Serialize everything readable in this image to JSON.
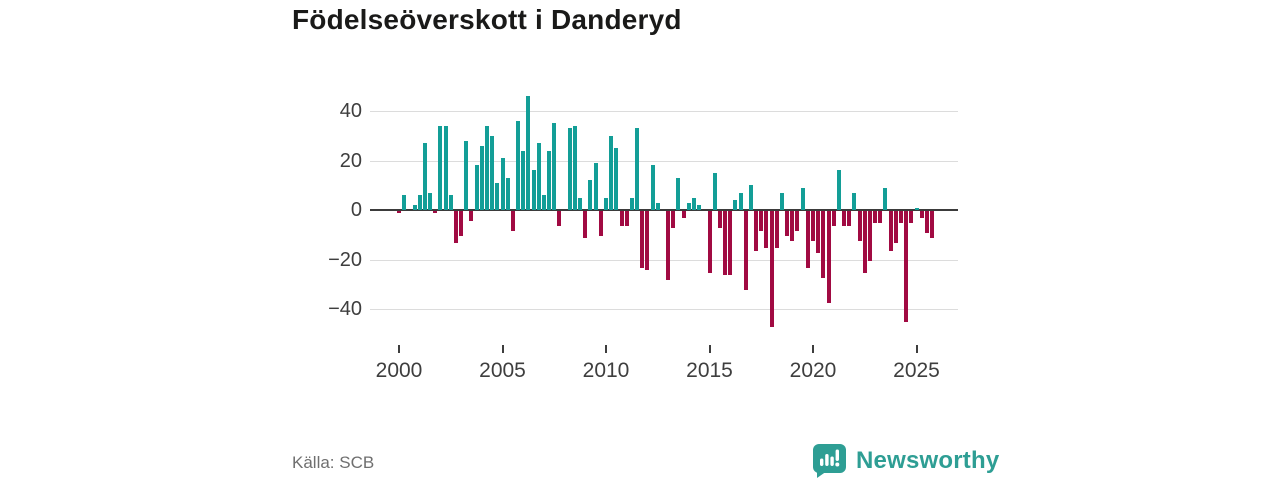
{
  "title": "Födelseöverskott i Danderyd",
  "footer": {
    "source": "Källa: SCB",
    "brand": "Newsworthy"
  },
  "colors": {
    "positive": "#139e97",
    "negative": "#a10a42",
    "axis": "#3b3b3b",
    "grid": "#dcdcdc",
    "brand_teal": "#2e9e94"
  },
  "chart_data": {
    "type": "bar",
    "title": "Födelseöverskott i Danderyd",
    "frequency": "quarterly",
    "x_start": "2000 Q1",
    "x_end": "2025 Q4",
    "x_tick_labels": [
      "2000",
      "2005",
      "2010",
      "2015",
      "2020",
      "2025"
    ],
    "y_tick_values": [
      40,
      20,
      0,
      -20,
      -40
    ],
    "ylim": [
      -50,
      48
    ],
    "grid": true,
    "legend": false,
    "series": [
      {
        "name": "Födelseöverskott",
        "values": [
          -1,
          6,
          0,
          2,
          6,
          27,
          7,
          -1,
          34,
          34,
          6,
          -13,
          -10,
          28,
          -4,
          18,
          26,
          34,
          30,
          11,
          21,
          13,
          -8,
          36,
          24,
          46,
          16,
          27,
          6,
          24,
          35,
          -6,
          0,
          33,
          34,
          5,
          -11,
          12,
          19,
          -10,
          5,
          30,
          25,
          -6,
          -6,
          5,
          33,
          -23,
          -24,
          18,
          3,
          0,
          -28,
          -7,
          13,
          -3,
          3,
          5,
          2,
          0,
          -25,
          15,
          -7,
          -26,
          -26,
          4,
          7,
          -32,
          10,
          -16,
          -8,
          -15,
          -47,
          -15,
          7,
          -10,
          -12,
          -8,
          9,
          -23,
          -12,
          -17,
          -27,
          -37,
          -6,
          16,
          -6,
          -6,
          7,
          -12,
          -25,
          -20,
          -5,
          -5,
          9,
          -16,
          -13,
          -5,
          -45,
          -5,
          1,
          -3,
          -9,
          -11
        ]
      }
    ]
  }
}
